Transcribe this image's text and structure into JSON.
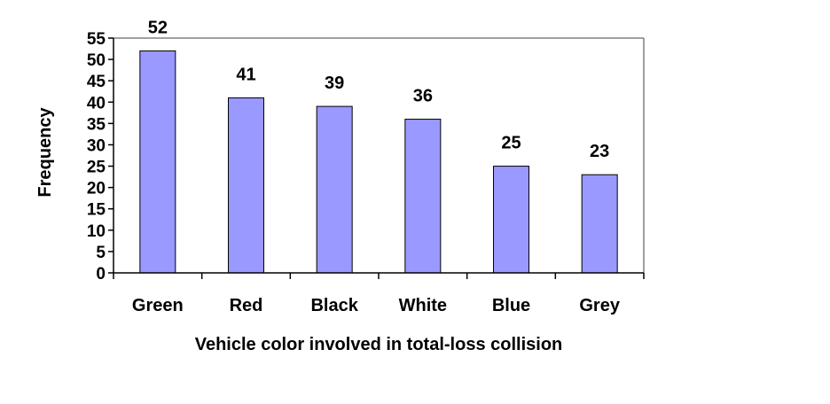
{
  "chart_data": {
    "type": "bar",
    "title": "",
    "xlabel": "Vehicle color involved in total-loss collision",
    "ylabel": "Frequency",
    "categories": [
      "Green",
      "Red",
      "Black",
      "White",
      "Blue",
      "Grey"
    ],
    "values": [
      52,
      41,
      39,
      36,
      25,
      23
    ],
    "data_labels": [
      "52",
      "41",
      "39",
      "36",
      "25",
      "23"
    ],
    "ylim": [
      0,
      55
    ],
    "yticks": [
      0,
      5,
      10,
      15,
      20,
      25,
      30,
      35,
      40,
      45,
      50,
      55
    ],
    "grid": false,
    "legend": "none",
    "colors": {
      "bar_fill": "#9999ff",
      "bar_stroke": "#000000",
      "axis": "#000000",
      "plot_border": "#808080"
    }
  }
}
